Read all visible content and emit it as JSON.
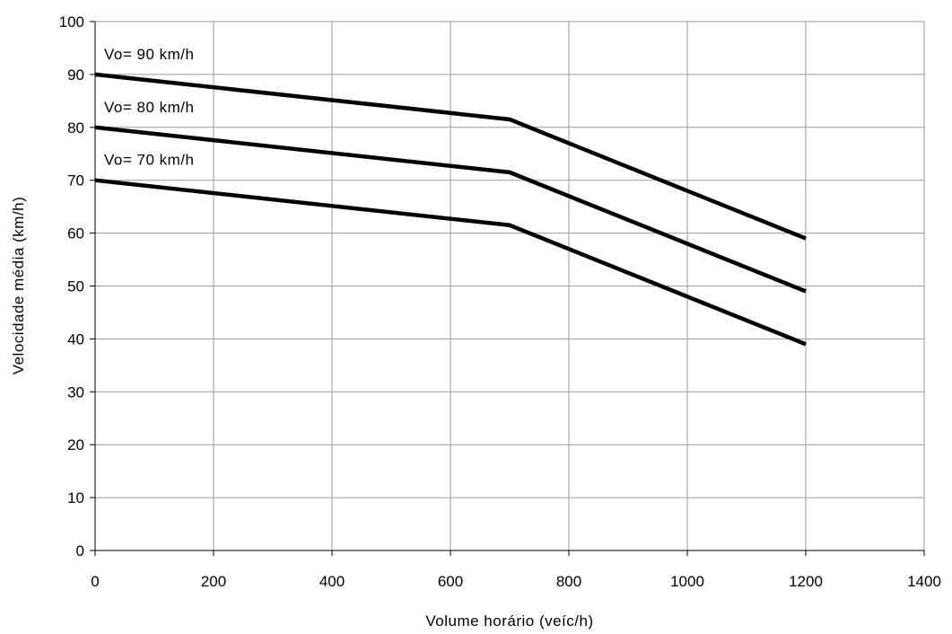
{
  "chart_data": {
    "type": "line",
    "title": "",
    "xlabel": "Volume horário (veíc/h)",
    "ylabel": "Velocidade média (km/h)",
    "xlim": [
      0,
      1400
    ],
    "ylim": [
      0,
      100
    ],
    "xticks": [
      0,
      200,
      400,
      600,
      800,
      1000,
      1200,
      1400
    ],
    "yticks": [
      0,
      10,
      20,
      30,
      40,
      50,
      60,
      70,
      80,
      90,
      100
    ],
    "grid": true,
    "legend": "none",
    "series": [
      {
        "name": "Vo= 90 km/h",
        "x": [
          0,
          700,
          1200
        ],
        "y": [
          90,
          81.5,
          59
        ]
      },
      {
        "name": "Vo= 80 km/h",
        "x": [
          0,
          700,
          1200
        ],
        "y": [
          80,
          71.5,
          49
        ]
      },
      {
        "name": "Vo= 70 km/h",
        "x": [
          0,
          700,
          1200
        ],
        "y": [
          70,
          61.5,
          39
        ]
      }
    ],
    "colors": {
      "line": "#000000",
      "grid": "#9a9a9a",
      "background": "#ffffff"
    }
  }
}
